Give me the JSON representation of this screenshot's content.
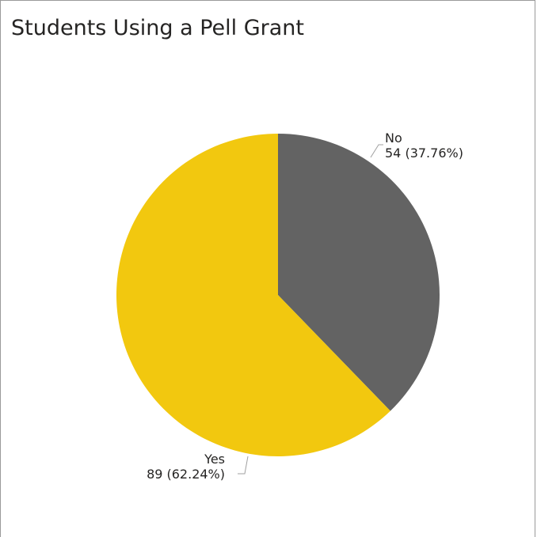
{
  "chart_data": {
    "type": "pie",
    "title": "Students Using a Pell Grant",
    "slices": [
      {
        "label": "No",
        "value": 54,
        "percent": "37.76%",
        "value_text": "54 (37.76%)",
        "color": "#636363"
      },
      {
        "label": "Yes",
        "value": 89,
        "percent": "62.24%",
        "value_text": "89 (62.24%)",
        "color": "#f2c80f"
      }
    ],
    "legend": "none",
    "start_angle": "12 o'clock",
    "direction": "clockwise"
  }
}
